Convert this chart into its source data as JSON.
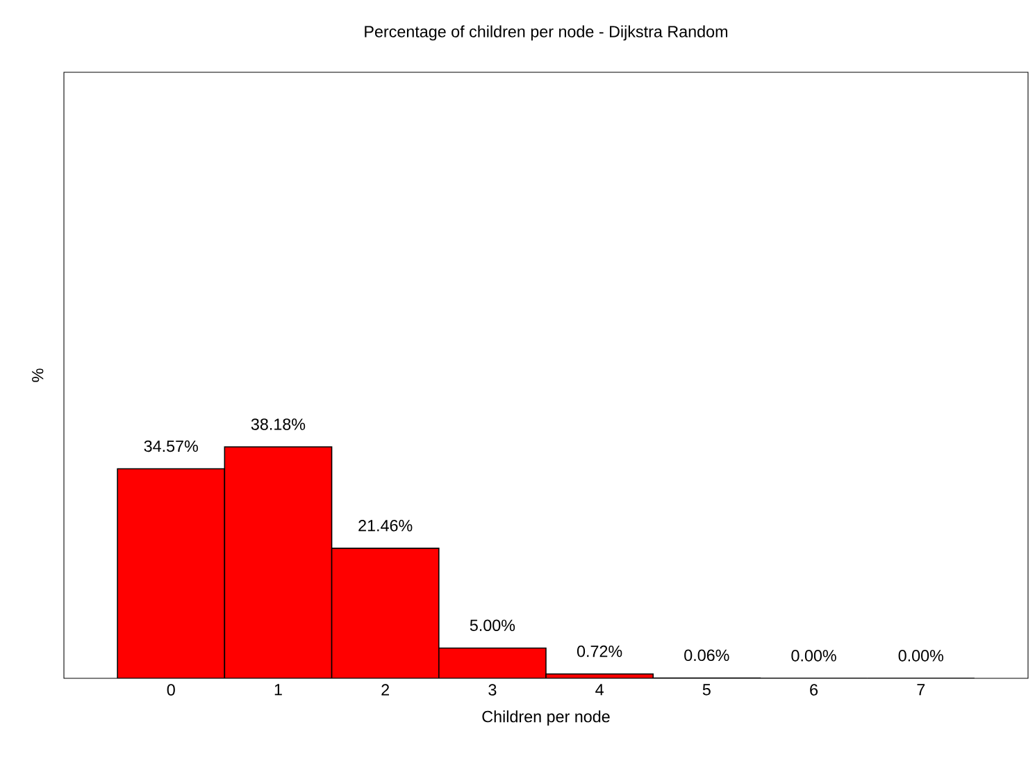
{
  "chart_data": {
    "type": "bar",
    "title": "Percentage of children per node - Dijkstra Random",
    "xlabel": "Children per node",
    "ylabel": "%",
    "categories": [
      "0",
      "1",
      "2",
      "3",
      "4",
      "5",
      "6",
      "7"
    ],
    "values": [
      34.57,
      38.18,
      21.46,
      5.0,
      0.72,
      0.06,
      0.0,
      0.0
    ],
    "value_labels": [
      "34.57%",
      "38.18%",
      "21.46%",
      "5.00%",
      "0.72%",
      "0.06%",
      "0.00%",
      "0.00%"
    ],
    "color": "#ff0000",
    "ylim": [
      0,
      100
    ],
    "grid": false,
    "tick_labels": "x"
  }
}
